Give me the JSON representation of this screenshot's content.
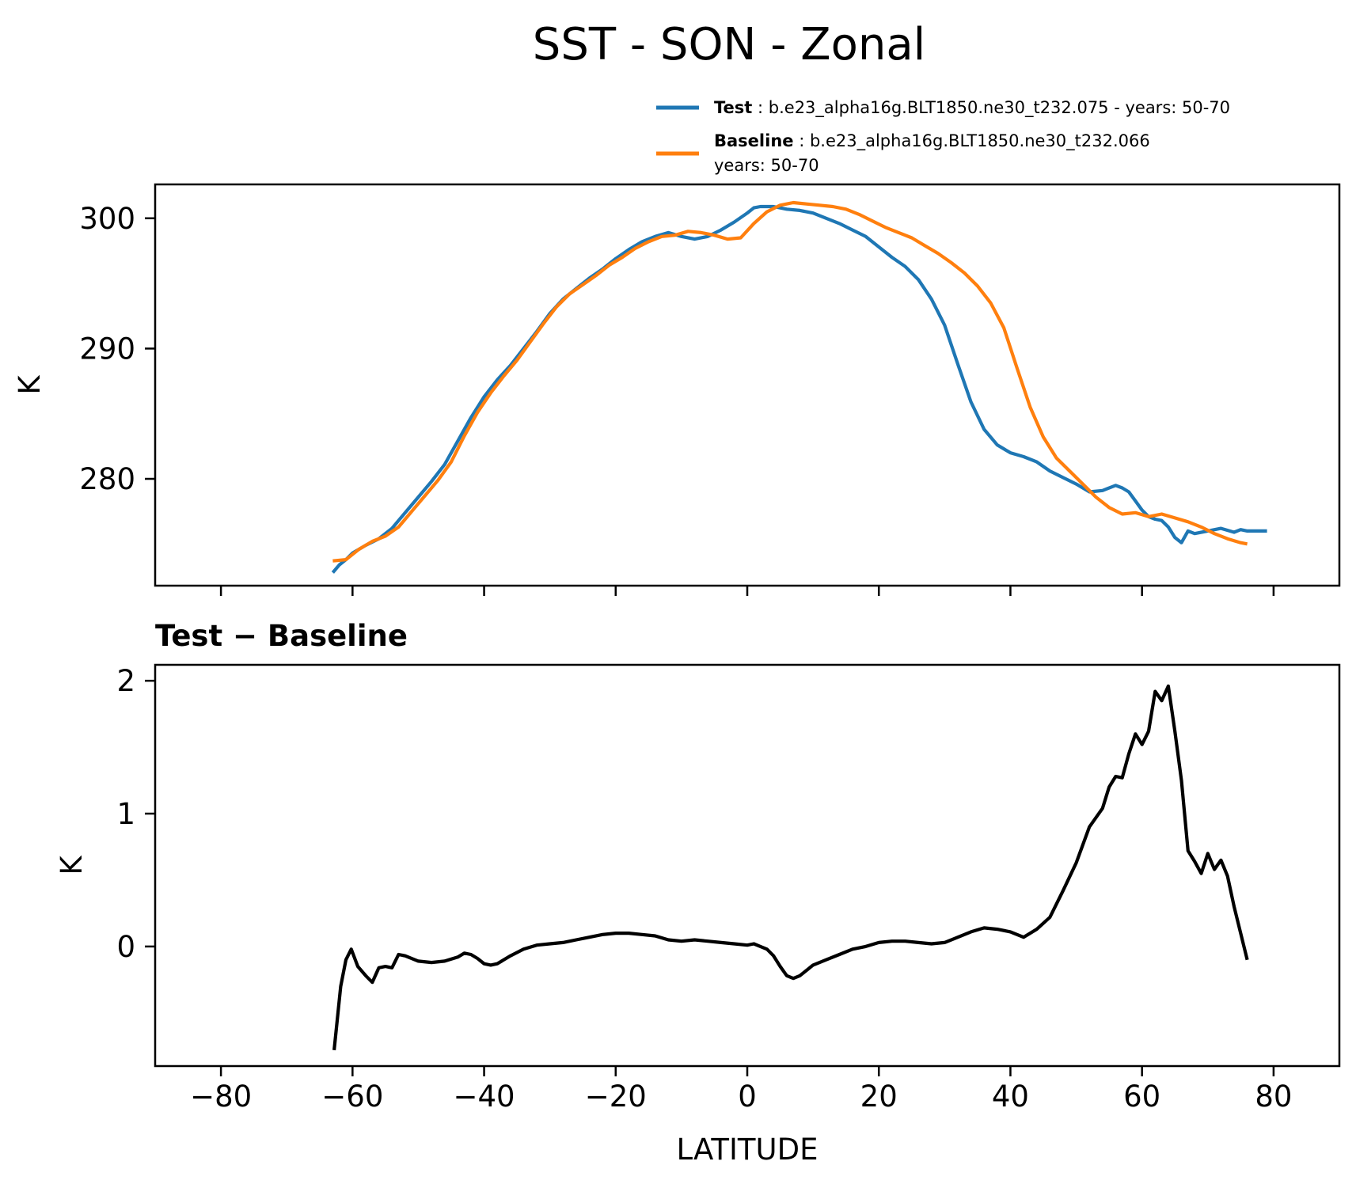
{
  "title": "SST - SON - Zonal",
  "colors": {
    "test": "#1f77b4",
    "baseline": "#ff7f0e",
    "diff": "#000000",
    "axes": "#000000",
    "background": "#ffffff"
  },
  "legend": {
    "placement": "top-right (above top panel)",
    "entries": [
      {
        "bold": "Test",
        "sep": " : ",
        "text": "b.e23_alpha16g.BLT1850.ne30_t232.075 - years: 50-70",
        "text2": ""
      },
      {
        "bold": "Baseline",
        "sep": " : ",
        "text": "b.e23_alpha16g.BLT1850.ne30_t232.066",
        "text2": "years: 50-70"
      }
    ]
  },
  "chart_data": [
    {
      "type": "line",
      "panel": "top",
      "title": "",
      "xlabel": "",
      "ylabel": "K",
      "xlim": [
        -90,
        90
      ],
      "ylim": [
        271.8,
        302.6
      ],
      "xticks": [
        -80,
        -60,
        -40,
        -20,
        0,
        20,
        40,
        60,
        80
      ],
      "yticks": [
        280,
        290,
        300
      ],
      "ytick_labels": [
        "280",
        "290",
        "300"
      ],
      "series": [
        {
          "name": "Test",
          "x": [
            -63,
            -62,
            -61,
            -60,
            -58,
            -56,
            -54,
            -52,
            -50,
            -48,
            -46,
            -44,
            -42,
            -40,
            -38,
            -36,
            -34,
            -32,
            -30,
            -28,
            -26,
            -24,
            -22,
            -20,
            -18,
            -16,
            -14,
            -12,
            -10,
            -8,
            -6,
            -4,
            -2,
            0,
            1,
            2,
            4,
            6,
            8,
            10,
            12,
            14,
            16,
            18,
            20,
            22,
            24,
            26,
            28,
            30,
            32,
            34,
            36,
            38,
            40,
            42,
            44,
            46,
            48,
            50,
            52,
            54,
            56,
            57,
            58,
            59,
            60,
            61,
            62,
            63,
            64,
            65,
            66,
            67,
            68,
            70,
            72,
            74,
            75,
            76,
            77,
            78,
            79
          ],
          "values": [
            272.8,
            273.4,
            273.8,
            274.3,
            274.9,
            275.4,
            276.2,
            277.4,
            278.6,
            279.8,
            281.1,
            282.9,
            284.7,
            286.3,
            287.6,
            288.7,
            290.0,
            291.3,
            292.7,
            293.8,
            294.6,
            295.4,
            296.1,
            296.9,
            297.6,
            298.2,
            298.6,
            298.9,
            298.6,
            298.4,
            298.6,
            299.1,
            299.7,
            300.4,
            300.8,
            300.9,
            300.9,
            300.7,
            300.6,
            300.4,
            300.0,
            299.6,
            299.1,
            298.6,
            297.8,
            297.0,
            296.3,
            295.3,
            293.8,
            291.8,
            288.8,
            285.9,
            283.8,
            282.6,
            282.0,
            281.7,
            281.3,
            280.6,
            280.1,
            279.6,
            279.0,
            279.1,
            279.5,
            279.3,
            279.0,
            278.3,
            277.6,
            277.1,
            276.9,
            276.8,
            276.3,
            275.5,
            275.1,
            276.0,
            275.8,
            276.0,
            276.2,
            275.9,
            276.1,
            276.0,
            276.0,
            276.0,
            276.0
          ],
          "color": "#1f77b4"
        },
        {
          "name": "Baseline",
          "x": [
            -63,
            -61,
            -59,
            -57,
            -55,
            -53,
            -51,
            -49,
            -47,
            -45,
            -43,
            -41,
            -39,
            -37,
            -35,
            -33,
            -31,
            -29,
            -27,
            -25,
            -23,
            -21,
            -19,
            -17,
            -15,
            -13,
            -11,
            -9,
            -7,
            -5,
            -3,
            -1,
            1,
            3,
            5,
            7,
            9,
            11,
            13,
            15,
            17,
            19,
            21,
            23,
            25,
            27,
            29,
            31,
            33,
            35,
            37,
            39,
            41,
            43,
            45,
            47,
            49,
            51,
            53,
            55,
            57,
            59,
            61,
            63,
            65,
            67,
            69,
            71,
            73,
            75,
            76
          ],
          "values": [
            273.7,
            273.8,
            274.6,
            275.2,
            275.6,
            276.3,
            277.5,
            278.7,
            279.9,
            281.3,
            283.3,
            285.1,
            286.6,
            287.9,
            289.1,
            290.5,
            291.9,
            293.2,
            294.2,
            294.9,
            295.6,
            296.4,
            297.0,
            297.7,
            298.2,
            298.6,
            298.7,
            299.0,
            298.9,
            298.7,
            298.4,
            298.5,
            299.6,
            300.5,
            301.0,
            301.2,
            301.1,
            301.0,
            300.9,
            300.7,
            300.3,
            299.8,
            299.3,
            298.9,
            298.5,
            297.9,
            297.3,
            296.6,
            295.8,
            294.8,
            293.5,
            291.6,
            288.5,
            285.5,
            283.2,
            281.6,
            280.6,
            279.6,
            278.6,
            277.8,
            277.3,
            277.4,
            277.1,
            277.3,
            277.0,
            276.7,
            276.3,
            275.8,
            275.4,
            275.1,
            275.0
          ],
          "color": "#ff7f0e"
        }
      ]
    },
    {
      "type": "line",
      "panel": "bottom",
      "title": "Test − Baseline",
      "xlabel": "LATITUDE",
      "ylabel": "K",
      "xlim": [
        -90,
        90
      ],
      "ylim": [
        -0.9,
        2.12
      ],
      "xticks": [
        -80,
        -60,
        -40,
        -20,
        0,
        20,
        40,
        60,
        80
      ],
      "xtick_labels": [
        "−80",
        "−60",
        "−40",
        "−20",
        "0",
        "20",
        "40",
        "60",
        "80"
      ],
      "yticks": [
        0,
        1,
        2
      ],
      "ytick_labels": [
        "0",
        "1",
        "2"
      ],
      "series": [
        {
          "name": "Test − Baseline",
          "x": [
            -62.8,
            -61.8,
            -61,
            -60.2,
            -59.2,
            -58,
            -57,
            -56,
            -55,
            -54,
            -53,
            -52,
            -50,
            -48,
            -46,
            -44,
            -43,
            -42,
            -41,
            -40,
            -39,
            -38,
            -36,
            -34,
            -32,
            -30,
            -28,
            -26,
            -24,
            -22,
            -20,
            -18,
            -16,
            -14,
            -12,
            -10,
            -8,
            -6,
            -4,
            -2,
            0,
            1,
            2,
            3,
            4,
            5,
            6,
            7,
            8,
            9,
            10,
            12,
            14,
            16,
            18,
            20,
            22,
            24,
            26,
            28,
            30,
            32,
            34,
            36,
            38,
            40,
            42,
            44,
            46,
            48,
            50,
            52,
            54,
            55,
            56,
            57,
            58,
            59,
            60,
            61,
            62,
            63,
            64,
            65,
            66,
            67,
            68,
            69,
            70,
            71,
            72,
            73,
            74,
            75,
            76
          ],
          "values": [
            -0.78,
            -0.3,
            -0.1,
            -0.02,
            -0.15,
            -0.22,
            -0.27,
            -0.16,
            -0.15,
            -0.16,
            -0.06,
            -0.07,
            -0.11,
            -0.12,
            -0.11,
            -0.08,
            -0.05,
            -0.06,
            -0.09,
            -0.13,
            -0.14,
            -0.13,
            -0.07,
            -0.02,
            0.01,
            0.02,
            0.03,
            0.05,
            0.07,
            0.09,
            0.1,
            0.1,
            0.09,
            0.08,
            0.05,
            0.04,
            0.05,
            0.04,
            0.03,
            0.02,
            0.01,
            0.02,
            0.0,
            -0.02,
            -0.07,
            -0.15,
            -0.22,
            -0.24,
            -0.22,
            -0.18,
            -0.14,
            -0.1,
            -0.06,
            -0.02,
            0.0,
            0.03,
            0.04,
            0.04,
            0.03,
            0.02,
            0.03,
            0.07,
            0.11,
            0.14,
            0.13,
            0.11,
            0.07,
            0.13,
            0.22,
            0.42,
            0.63,
            0.9,
            1.04,
            1.2,
            1.28,
            1.27,
            1.45,
            1.6,
            1.52,
            1.62,
            1.92,
            1.85,
            1.96,
            1.62,
            1.25,
            0.72,
            0.64,
            0.55,
            0.7,
            0.58,
            0.65,
            0.53,
            0.3,
            0.1,
            -0.1
          ],
          "color": "#000000"
        }
      ]
    }
  ]
}
